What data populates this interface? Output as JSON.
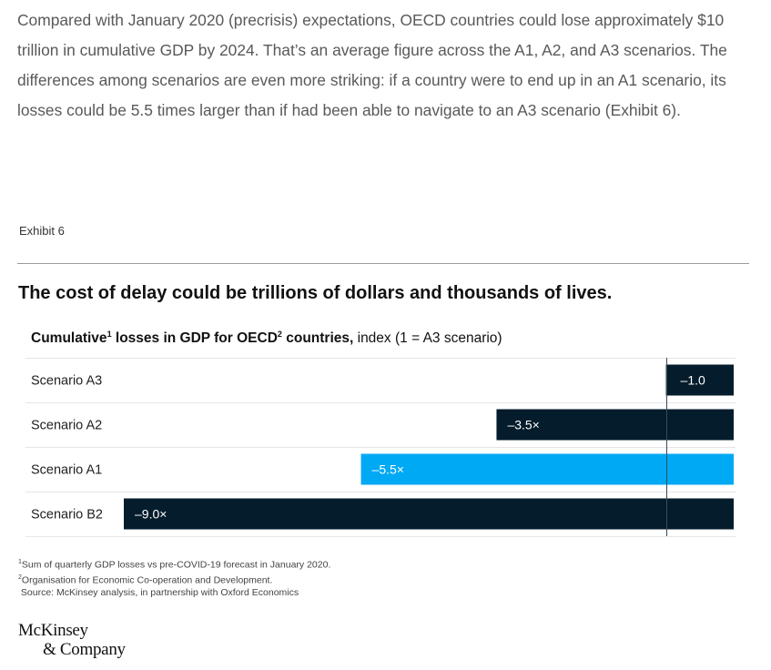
{
  "intro_text": "Compared with January 2020 (precrisis) expectations, OECD countries could lose approximately $10 trillion in cumulative GDP by 2024. That’s an average figure across the A1, A2, and A3 scenarios. The differences among scenarios are even more striking: if a country were to end up in an A1 scenario, its losses could be 5.5 times larger than if had been able to navigate to an A3 scenario (Exhibit 6).",
  "exhibit_label": "Exhibit 6",
  "chart_data": {
    "type": "bar",
    "orientation": "horizontal",
    "title": "The cost of delay could be trillions of dollars and thousands of lives.",
    "subtitle": {
      "part1": "Cumulative",
      "sup1": "1",
      "part2": " losses in GDP for OECD",
      "sup2": "2",
      "part3": " countries,",
      "unit": " index (1 = A3 scenario)"
    },
    "categories": [
      "Scenario A3",
      "Scenario A2",
      "Scenario A1",
      "Scenario B2"
    ],
    "values": [
      -1.0,
      -3.5,
      -5.5,
      -9.0
    ],
    "value_labels": [
      "–1.0",
      "–3.5×",
      "–5.5×",
      "–9.0×"
    ],
    "bar_colors": [
      "#051c2c",
      "#051c2c",
      "#00a9f4",
      "#051c2c"
    ],
    "xlim": [
      -9.0,
      0
    ],
    "reference_line": -1.0,
    "grid": false
  },
  "footnotes": {
    "note1_mark": "1",
    "note1": "Sum of quarterly GDP losses vs pre-COVID-19 forecast in January 2020.",
    "note2_mark": "2",
    "note2": "Organisation for Economic Co-operation and Development.",
    "source": " Source: McKinsey analysis, in partnership with Oxford Economics"
  },
  "logo": {
    "line1": "McKinsey",
    "line2": "& Company"
  }
}
